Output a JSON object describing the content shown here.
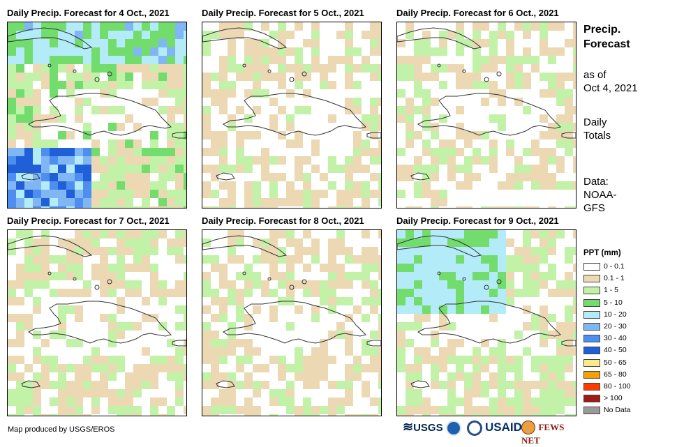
{
  "panels": [
    {
      "title": "Daily Precip. Forecast for 4 Oct., 2021",
      "seed": 11,
      "bias": 2.2
    },
    {
      "title": "Daily Precip. Forecast for 5 Oct., 2021",
      "seed": 23,
      "bias": 1.1
    },
    {
      "title": "Daily Precip. Forecast for 6 Oct., 2021",
      "seed": 37,
      "bias": 1.3
    },
    {
      "title": "Daily Precip. Forecast for 7 Oct., 2021",
      "seed": 41,
      "bias": 1.5
    },
    {
      "title": "Daily Precip. Forecast for 8 Oct., 2021",
      "seed": 53,
      "bias": 1.3
    },
    {
      "title": "Daily Precip. Forecast for 9 Oct., 2021",
      "seed": 67,
      "bias": 1.7
    }
  ],
  "side": {
    "title_line1": "Precip.",
    "title_line2": "Forecast",
    "asof_line1": "as of",
    "asof_line2": "Oct 4, 2021",
    "totals_line1": "Daily",
    "totals_line2": "Totals",
    "data_line1": "Data:",
    "data_line2": "NOAA-",
    "data_line3": "GFS"
  },
  "legend": {
    "title": "PPT (mm)",
    "items": [
      {
        "label": "0 - 0.1",
        "color": "#ffffff"
      },
      {
        "label": "0.1 - 1",
        "color": "#ecd9b4"
      },
      {
        "label": "1 - 5",
        "color": "#c2f2a8"
      },
      {
        "label": "5 - 10",
        "color": "#72dc6c"
      },
      {
        "label": "10 - 20",
        "color": "#b3ecf8"
      },
      {
        "label": "20 - 30",
        "color": "#80b6f4"
      },
      {
        "label": "30 - 40",
        "color": "#4d8ef0"
      },
      {
        "label": "40 - 50",
        "color": "#1f5fd8"
      },
      {
        "label": "50 - 65",
        "color": "#ffea8a"
      },
      {
        "label": "65 - 80",
        "color": "#f5a200"
      },
      {
        "label": "80 - 100",
        "color": "#ff3c00"
      },
      {
        "label": "> 100",
        "color": "#a01a1a"
      },
      {
        "label": "No Data",
        "color": "#9a9a9a"
      }
    ]
  },
  "credit": "Map produced by USGS/EROS",
  "logos": {
    "usgs": "USGS",
    "usaid": "USAID",
    "fewsnet": "FEWS NET"
  }
}
